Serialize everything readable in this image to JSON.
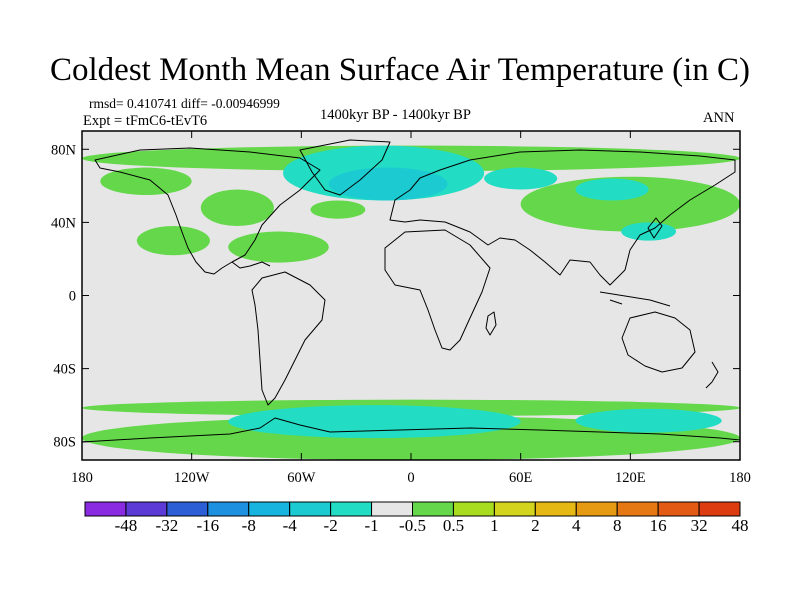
{
  "title": "Coldest Month Mean Surface Air Temperature (in C)",
  "stats_text": "rmsd= 0.410741 diff= -0.00946999",
  "experiment_label": "Expt = tFmC6-tEvT6",
  "period_label": "1400kyr BP - 1400kyr BP",
  "season_label": "ANN",
  "map": {
    "projection": "cylindrical equidistant",
    "lon_range": [
      -180,
      180
    ],
    "lat_range": [
      -90,
      90
    ],
    "background_color": "#e6e6e6",
    "coastline_color": "#000000"
  },
  "axes": {
    "x_ticks": [
      {
        "lon": -180,
        "label": "180"
      },
      {
        "lon": -120,
        "label": "120W"
      },
      {
        "lon": -60,
        "label": "60W"
      },
      {
        "lon": 0,
        "label": "0"
      },
      {
        "lon": 60,
        "label": "60E"
      },
      {
        "lon": 120,
        "label": "120E"
      },
      {
        "lon": 180,
        "label": "180"
      }
    ],
    "y_ticks": [
      {
        "lat": 80,
        "label": "80N"
      },
      {
        "lat": 40,
        "label": "40N"
      },
      {
        "lat": 0,
        "label": "0"
      },
      {
        "lat": -40,
        "label": "40S"
      },
      {
        "lat": -80,
        "label": "80S"
      }
    ]
  },
  "colorbar": {
    "colors": [
      "#8a2be2",
      "#5b3ad6",
      "#2c5fd6",
      "#1e90e0",
      "#18b4e0",
      "#1ccbd2",
      "#22dcc4",
      "#e6e6e6",
      "#64d84a",
      "#a8dc1e",
      "#d2d41e",
      "#e6b814",
      "#e69a14",
      "#e67814",
      "#e25a14",
      "#dc3c10"
    ],
    "labels": [
      "-48",
      "-32",
      "-16",
      "-8",
      "-4",
      "-2",
      "-1",
      "-0.5",
      "0.5",
      "1",
      "2",
      "4",
      "8",
      "16",
      "32",
      "48"
    ]
  },
  "anomaly_regions": [
    {
      "level": "0.5 to 1",
      "color": "#64d84a",
      "lon": [
        -180,
        180
      ],
      "lat": [
        68,
        82
      ]
    },
    {
      "level": "0.5 to 1",
      "color": "#64d84a",
      "lon": [
        -170,
        -120
      ],
      "lat": [
        55,
        70
      ]
    },
    {
      "level": "0.5 to 1",
      "color": "#64d84a",
      "lon": [
        -115,
        -75
      ],
      "lat": [
        38,
        58
      ]
    },
    {
      "level": "0.5 to 1",
      "color": "#64d84a",
      "lon": [
        -55,
        -25
      ],
      "lat": [
        42,
        52
      ]
    },
    {
      "level": "0.5 to 1",
      "color": "#64d84a",
      "lon": [
        -100,
        -45
      ],
      "lat": [
        18,
        35
      ]
    },
    {
      "level": "0.5 to 1",
      "color": "#64d84a",
      "lon": [
        -150,
        -110
      ],
      "lat": [
        22,
        38
      ]
    },
    {
      "level": "0.5 to 1",
      "color": "#64d84a",
      "lon": [
        60,
        180
      ],
      "lat": [
        35,
        65
      ]
    },
    {
      "level": "0.5 to 1",
      "color": "#64d84a",
      "lon": [
        -180,
        180
      ],
      "lat": [
        -90,
        -66
      ]
    },
    {
      "level": "0.5 to 1",
      "color": "#64d84a",
      "lon": [
        -180,
        180
      ],
      "lat": [
        -66,
        -57
      ]
    },
    {
      "level": "-0.5 to -1",
      "color": "#22dcc4",
      "lon": [
        -70,
        40
      ],
      "lat": [
        52,
        82
      ]
    },
    {
      "level": "-0.5 to -1",
      "color": "#22dcc4",
      "lon": [
        40,
        80
      ],
      "lat": [
        58,
        70
      ]
    },
    {
      "level": "-0.5 to -1",
      "color": "#22dcc4",
      "lon": [
        90,
        130
      ],
      "lat": [
        52,
        64
      ]
    },
    {
      "level": "-0.5 to -1",
      "color": "#22dcc4",
      "lon": [
        -100,
        60
      ],
      "lat": [
        -78,
        -60
      ]
    },
    {
      "level": "-0.5 to -1",
      "color": "#22dcc4",
      "lon": [
        90,
        170
      ],
      "lat": [
        -75,
        -62
      ]
    },
    {
      "level": "-0.5 to -1",
      "color": "#22dcc4",
      "lon": [
        115,
        145
      ],
      "lat": [
        30,
        40
      ]
    },
    {
      "level": "-1 to -2",
      "color": "#1ccbd2",
      "lon": [
        -45,
        20
      ],
      "lat": [
        52,
        70
      ]
    }
  ]
}
